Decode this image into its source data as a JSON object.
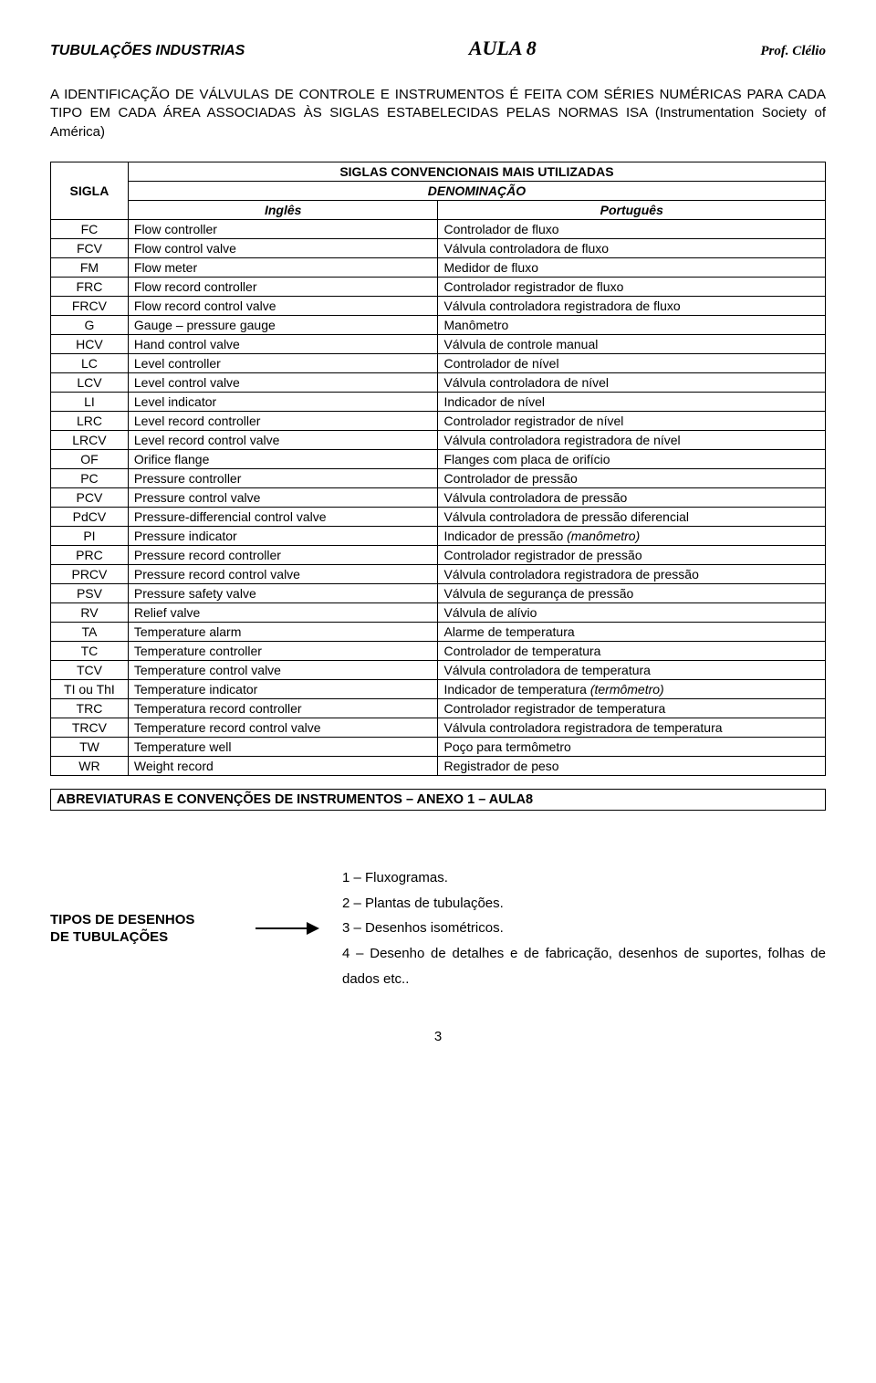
{
  "header": {
    "left": "TUBULAÇÕES INDUSTRIAS",
    "center": "AULA 8",
    "right": "Prof. Clélio"
  },
  "intro": "A IDENTIFICAÇÃO DE VÁLVULAS DE CONTROLE E INSTRUMENTOS É FEITA COM SÉRIES NUMÉRICAS PARA CADA TIPO EM CADA ÁREA ASSOCIADAS ÀS SIGLAS ESTABELECIDAS PELAS NORMAS ISA (Instrumentation Society of América)",
  "table": {
    "title": "SIGLAS CONVENCIONAIS MAIS UTILIZADAS",
    "sigla_header": "SIGLA",
    "denom_header": "DENOMINAÇÃO",
    "lang_en": "Inglês",
    "lang_pt": "Português",
    "rows": [
      {
        "s": "FC",
        "en": "Flow controller",
        "pt": "Controlador de fluxo"
      },
      {
        "s": "FCV",
        "en": "Flow control valve",
        "pt": "Válvula controladora de fluxo"
      },
      {
        "s": "FM",
        "en": "Flow meter",
        "pt": "Medidor de fluxo"
      },
      {
        "s": "FRC",
        "en": "Flow record controller",
        "pt": "Controlador registrador de fluxo"
      },
      {
        "s": "FRCV",
        "en": "Flow record control valve",
        "pt": "Válvula controladora registradora de fluxo"
      },
      {
        "s": "G",
        "en": "Gauge – pressure gauge",
        "pt": "Manômetro"
      },
      {
        "s": "HCV",
        "en": "Hand control valve",
        "pt": "Válvula de controle manual"
      },
      {
        "s": "LC",
        "en": "Level controller",
        "pt": "Controlador de nível"
      },
      {
        "s": "LCV",
        "en": "Level control valve",
        "pt": "Válvula controladora de nível"
      },
      {
        "s": "LI",
        "en": "Level indicator",
        "pt": "Indicador de nível"
      },
      {
        "s": "LRC",
        "en": "Level record controller",
        "pt": "Controlador registrador de nível"
      },
      {
        "s": "LRCV",
        "en": "Level record control valve",
        "pt": "Válvula controladora registradora de nível"
      },
      {
        "s": "OF",
        "en": "Orifice flange",
        "pt": "Flanges com placa de orifício"
      },
      {
        "s": "PC",
        "en": "Pressure controller",
        "pt": "Controlador de pressão"
      },
      {
        "s": "PCV",
        "en": "Pressure control valve",
        "pt": "Válvula controladora de pressão"
      },
      {
        "s": "PdCV",
        "en": "Pressure-differencial control valve",
        "pt": "Válvula controladora de pressão diferencial",
        "small": true
      },
      {
        "s": "PI",
        "en": "Pressure indicator",
        "pt": "Indicador de pressão ",
        "suffix": "(manômetro)",
        "suffix_italic": true
      },
      {
        "s": "PRC",
        "en": "Pressure record controller",
        "pt": "Controlador registrador de pressão"
      },
      {
        "s": "PRCV",
        "en": "Pressure record control valve",
        "pt": "Válvula controladora registradora de pressão",
        "small": true
      },
      {
        "s": "PSV",
        "en": "Pressure safety valve",
        "pt": "Válvula de segurança de pressão"
      },
      {
        "s": "RV",
        "en": "Relief valve",
        "pt": "Válvula de alívio"
      },
      {
        "s": "TA",
        "en": "Temperature alarm",
        "pt": "Alarme de temperatura"
      },
      {
        "s": "TC",
        "en": "Temperature controller",
        "pt": "Controlador de temperatura"
      },
      {
        "s": "TCV",
        "en": "Temperature control valve",
        "pt": "Válvula controladora de temperatura"
      },
      {
        "s": "TI ou ThI",
        "en": "Temperature indicator",
        "pt": "Indicador de temperatura ",
        "suffix": "(termômetro)",
        "suffix_italic": true
      },
      {
        "s": "TRC",
        "en": "Temperatura record controller",
        "pt": "Controlador registrador de temperatura"
      },
      {
        "s": "TRCV",
        "en": "Temperature record control valve",
        "pt": "Válvula controladora registradora de temperatura",
        "small": true
      },
      {
        "s": "TW",
        "en": "Temperature well",
        "pt": "Poço para termômetro"
      },
      {
        "s": "WR",
        "en": "Weight record",
        "pt": "Registrador de peso"
      }
    ]
  },
  "annex": "ABREVIATURAS E CONVENÇÕES DE INSTRUMENTOS – ANEXO 1 – AULA8",
  "tipos": {
    "label_line1": "TIPOS DE DESENHOS",
    "label_line2": "DE TUBULAÇÕES",
    "items": [
      "1 – Fluxogramas.",
      "2 – Plantas de tubulações.",
      "3 – Desenhos isométricos.",
      "4 – Desenho de detalhes e de fabricação, desenhos de suportes, folhas de dados etc.."
    ]
  },
  "page_number": "3",
  "colors": {
    "text": "#000000",
    "bg": "#ffffff",
    "arrow": "#000000"
  }
}
